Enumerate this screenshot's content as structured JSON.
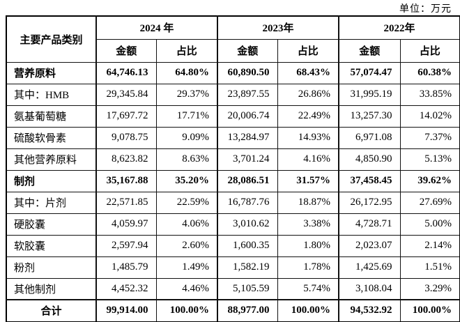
{
  "unit_label": "单位：万元",
  "colors": {
    "background": "#ffffff",
    "border": "#000000",
    "text": "#000000"
  },
  "table": {
    "category_header": "主要产品类别",
    "year_headers": [
      "2024 年",
      "2023年",
      "2022年"
    ],
    "sub_headers": [
      "金额",
      "占比"
    ],
    "rows": [
      {
        "label": "营养原料",
        "bold": true,
        "center": false,
        "total": false,
        "values": [
          "64,746.13",
          "64.80%",
          "60,890.50",
          "68.43%",
          "57,074.47",
          "60.38%"
        ]
      },
      {
        "label": "其中：HMB",
        "bold": false,
        "center": false,
        "total": false,
        "values": [
          "29,345.84",
          "29.37%",
          "23,897.55",
          "26.86%",
          "31,995.19",
          "33.85%"
        ]
      },
      {
        "label": "氨基葡萄糖",
        "bold": false,
        "center": false,
        "total": false,
        "values": [
          "17,697.72",
          "17.71%",
          "20,006.74",
          "22.49%",
          "13,257.30",
          "14.02%"
        ]
      },
      {
        "label": "硫酸软骨素",
        "bold": false,
        "center": false,
        "total": false,
        "values": [
          "9,078.75",
          "9.09%",
          "13,284.97",
          "14.93%",
          "6,971.08",
          "7.37%"
        ]
      },
      {
        "label": "其他营养原料",
        "bold": false,
        "center": false,
        "total": false,
        "values": [
          "8,623.82",
          "8.63%",
          "3,701.24",
          "4.16%",
          "4,850.90",
          "5.13%"
        ]
      },
      {
        "label": "制剂",
        "bold": true,
        "center": false,
        "total": false,
        "values": [
          "35,167.88",
          "35.20%",
          "28,086.51",
          "31.57%",
          "37,458.45",
          "39.62%"
        ]
      },
      {
        "label": "其中：片剂",
        "bold": false,
        "center": false,
        "total": false,
        "values": [
          "22,571.85",
          "22.59%",
          "16,787.76",
          "18.87%",
          "26,172.95",
          "27.69%"
        ]
      },
      {
        "label": "硬胶囊",
        "bold": false,
        "center": false,
        "total": false,
        "values": [
          "4,059.97",
          "4.06%",
          "3,010.62",
          "3.38%",
          "4,728.71",
          "5.00%"
        ]
      },
      {
        "label": "软胶囊",
        "bold": false,
        "center": false,
        "total": false,
        "values": [
          "2,597.94",
          "2.60%",
          "1,600.35",
          "1.80%",
          "2,023.07",
          "2.14%"
        ]
      },
      {
        "label": "粉剂",
        "bold": false,
        "center": false,
        "total": false,
        "values": [
          "1,485.79",
          "1.49%",
          "1,582.19",
          "1.78%",
          "1,425.69",
          "1.51%"
        ]
      },
      {
        "label": "其他制剂",
        "bold": false,
        "center": false,
        "total": false,
        "values": [
          "4,452.32",
          "4.46%",
          "5,105.59",
          "5.74%",
          "3,108.04",
          "3.29%"
        ]
      },
      {
        "label": "合计",
        "bold": true,
        "center": true,
        "total": true,
        "values": [
          "99,914.00",
          "100.00%",
          "88,977.00",
          "100.00%",
          "94,532.92",
          "100.00%"
        ]
      }
    ]
  }
}
